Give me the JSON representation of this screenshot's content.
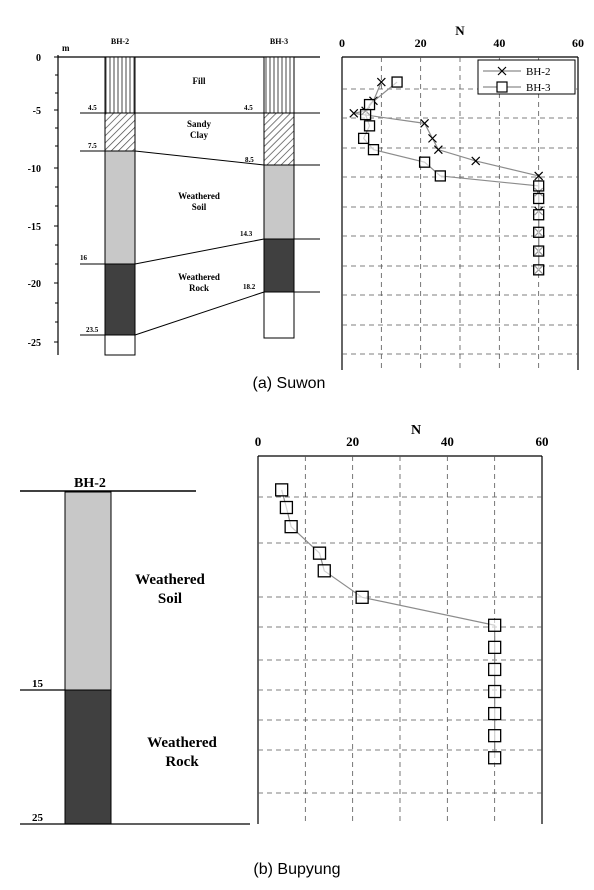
{
  "colors": {
    "fill_hatch": "#444444",
    "weathered_soil": "#c8c8c8",
    "weathered_rock": "#404040",
    "line": "#000000",
    "grid": "#555555",
    "series_line": "#8c8c8c"
  },
  "captions": {
    "a": "(a)  Suwon",
    "b": "(b)  Bupyung"
  },
  "suwon": {
    "depth_unit": "m",
    "depth_ticks": [
      "0",
      "-5",
      "-10",
      "-15",
      "-20",
      "-25"
    ],
    "boreholes": [
      "BH-2",
      "BH-3"
    ],
    "layers": [
      "Fill",
      "Sandy",
      "Clay",
      "Weathered",
      "Soil",
      "Weathered",
      "Rock"
    ],
    "bh2_depth_labels": [
      "4.5",
      "7.5",
      "16",
      "23.5"
    ],
    "bh3_depth_labels": [
      "4.5",
      "8.5",
      "14.3",
      "18.2"
    ]
  },
  "bupyung": {
    "borehole": "BH-2",
    "layers": [
      "Weathered",
      "Soil",
      "Weathered",
      "Rock"
    ],
    "depth_labels": [
      "15",
      "25"
    ]
  },
  "chart_data": [
    {
      "type": "scatter",
      "title": "",
      "xlabel": "N",
      "ylabel": "",
      "xlim": [
        0,
        60
      ],
      "ylim": [
        -25,
        0
      ],
      "x_ticks": [
        "0",
        "20",
        "40",
        "60"
      ],
      "grid": true,
      "legend": "top-right",
      "series": [
        {
          "name": "BH-2",
          "marker": "x",
          "points": [
            [
              10,
              -2
            ],
            [
              8,
              -3.5
            ],
            [
              6,
              -4.3
            ],
            [
              3,
              -4.5
            ],
            [
              21,
              -5.3
            ],
            [
              23,
              -6.5
            ],
            [
              24.5,
              -7.4
            ],
            [
              34,
              -8.3
            ],
            [
              50,
              -9.5
            ],
            [
              50,
              -10.8
            ],
            [
              50,
              -12.3
            ],
            [
              50,
              -14
            ],
            [
              50,
              -15.5
            ],
            [
              50,
              -17
            ]
          ]
        },
        {
          "name": "BH-3",
          "marker": "square",
          "points": [
            [
              14,
              -2
            ],
            [
              7,
              -3.8
            ],
            [
              6,
              -4.6
            ],
            [
              7,
              -5.5
            ],
            [
              5.5,
              -6.5
            ],
            [
              8,
              -7.4
            ],
            [
              21,
              -8.4
            ],
            [
              25,
              -9.5
            ],
            [
              50,
              -10.3
            ],
            [
              50,
              -11.3
            ],
            [
              50,
              -12.6
            ],
            [
              50,
              -14
            ],
            [
              50,
              -15.5
            ],
            [
              50,
              -17
            ]
          ]
        }
      ]
    },
    {
      "type": "scatter",
      "title": "",
      "xlabel": "N",
      "ylabel": "",
      "xlim": [
        0,
        60
      ],
      "ylim": [
        -25,
        0
      ],
      "x_ticks": [
        "0",
        "20",
        "40",
        "60"
      ],
      "grid": true,
      "series": [
        {
          "marker": "square",
          "points": [
            [
              5,
              -2.3
            ],
            [
              6,
              -3.5
            ],
            [
              7,
              -4.8
            ],
            [
              13,
              -6.6
            ],
            [
              14,
              -7.8
            ],
            [
              22,
              -9.6
            ],
            [
              50,
              -11.5
            ],
            [
              50,
              -13
            ],
            [
              50,
              -14.5
            ],
            [
              50,
              -16
            ],
            [
              50,
              -17.5
            ],
            [
              50,
              -19
            ],
            [
              50,
              -20.5
            ]
          ]
        }
      ]
    }
  ]
}
